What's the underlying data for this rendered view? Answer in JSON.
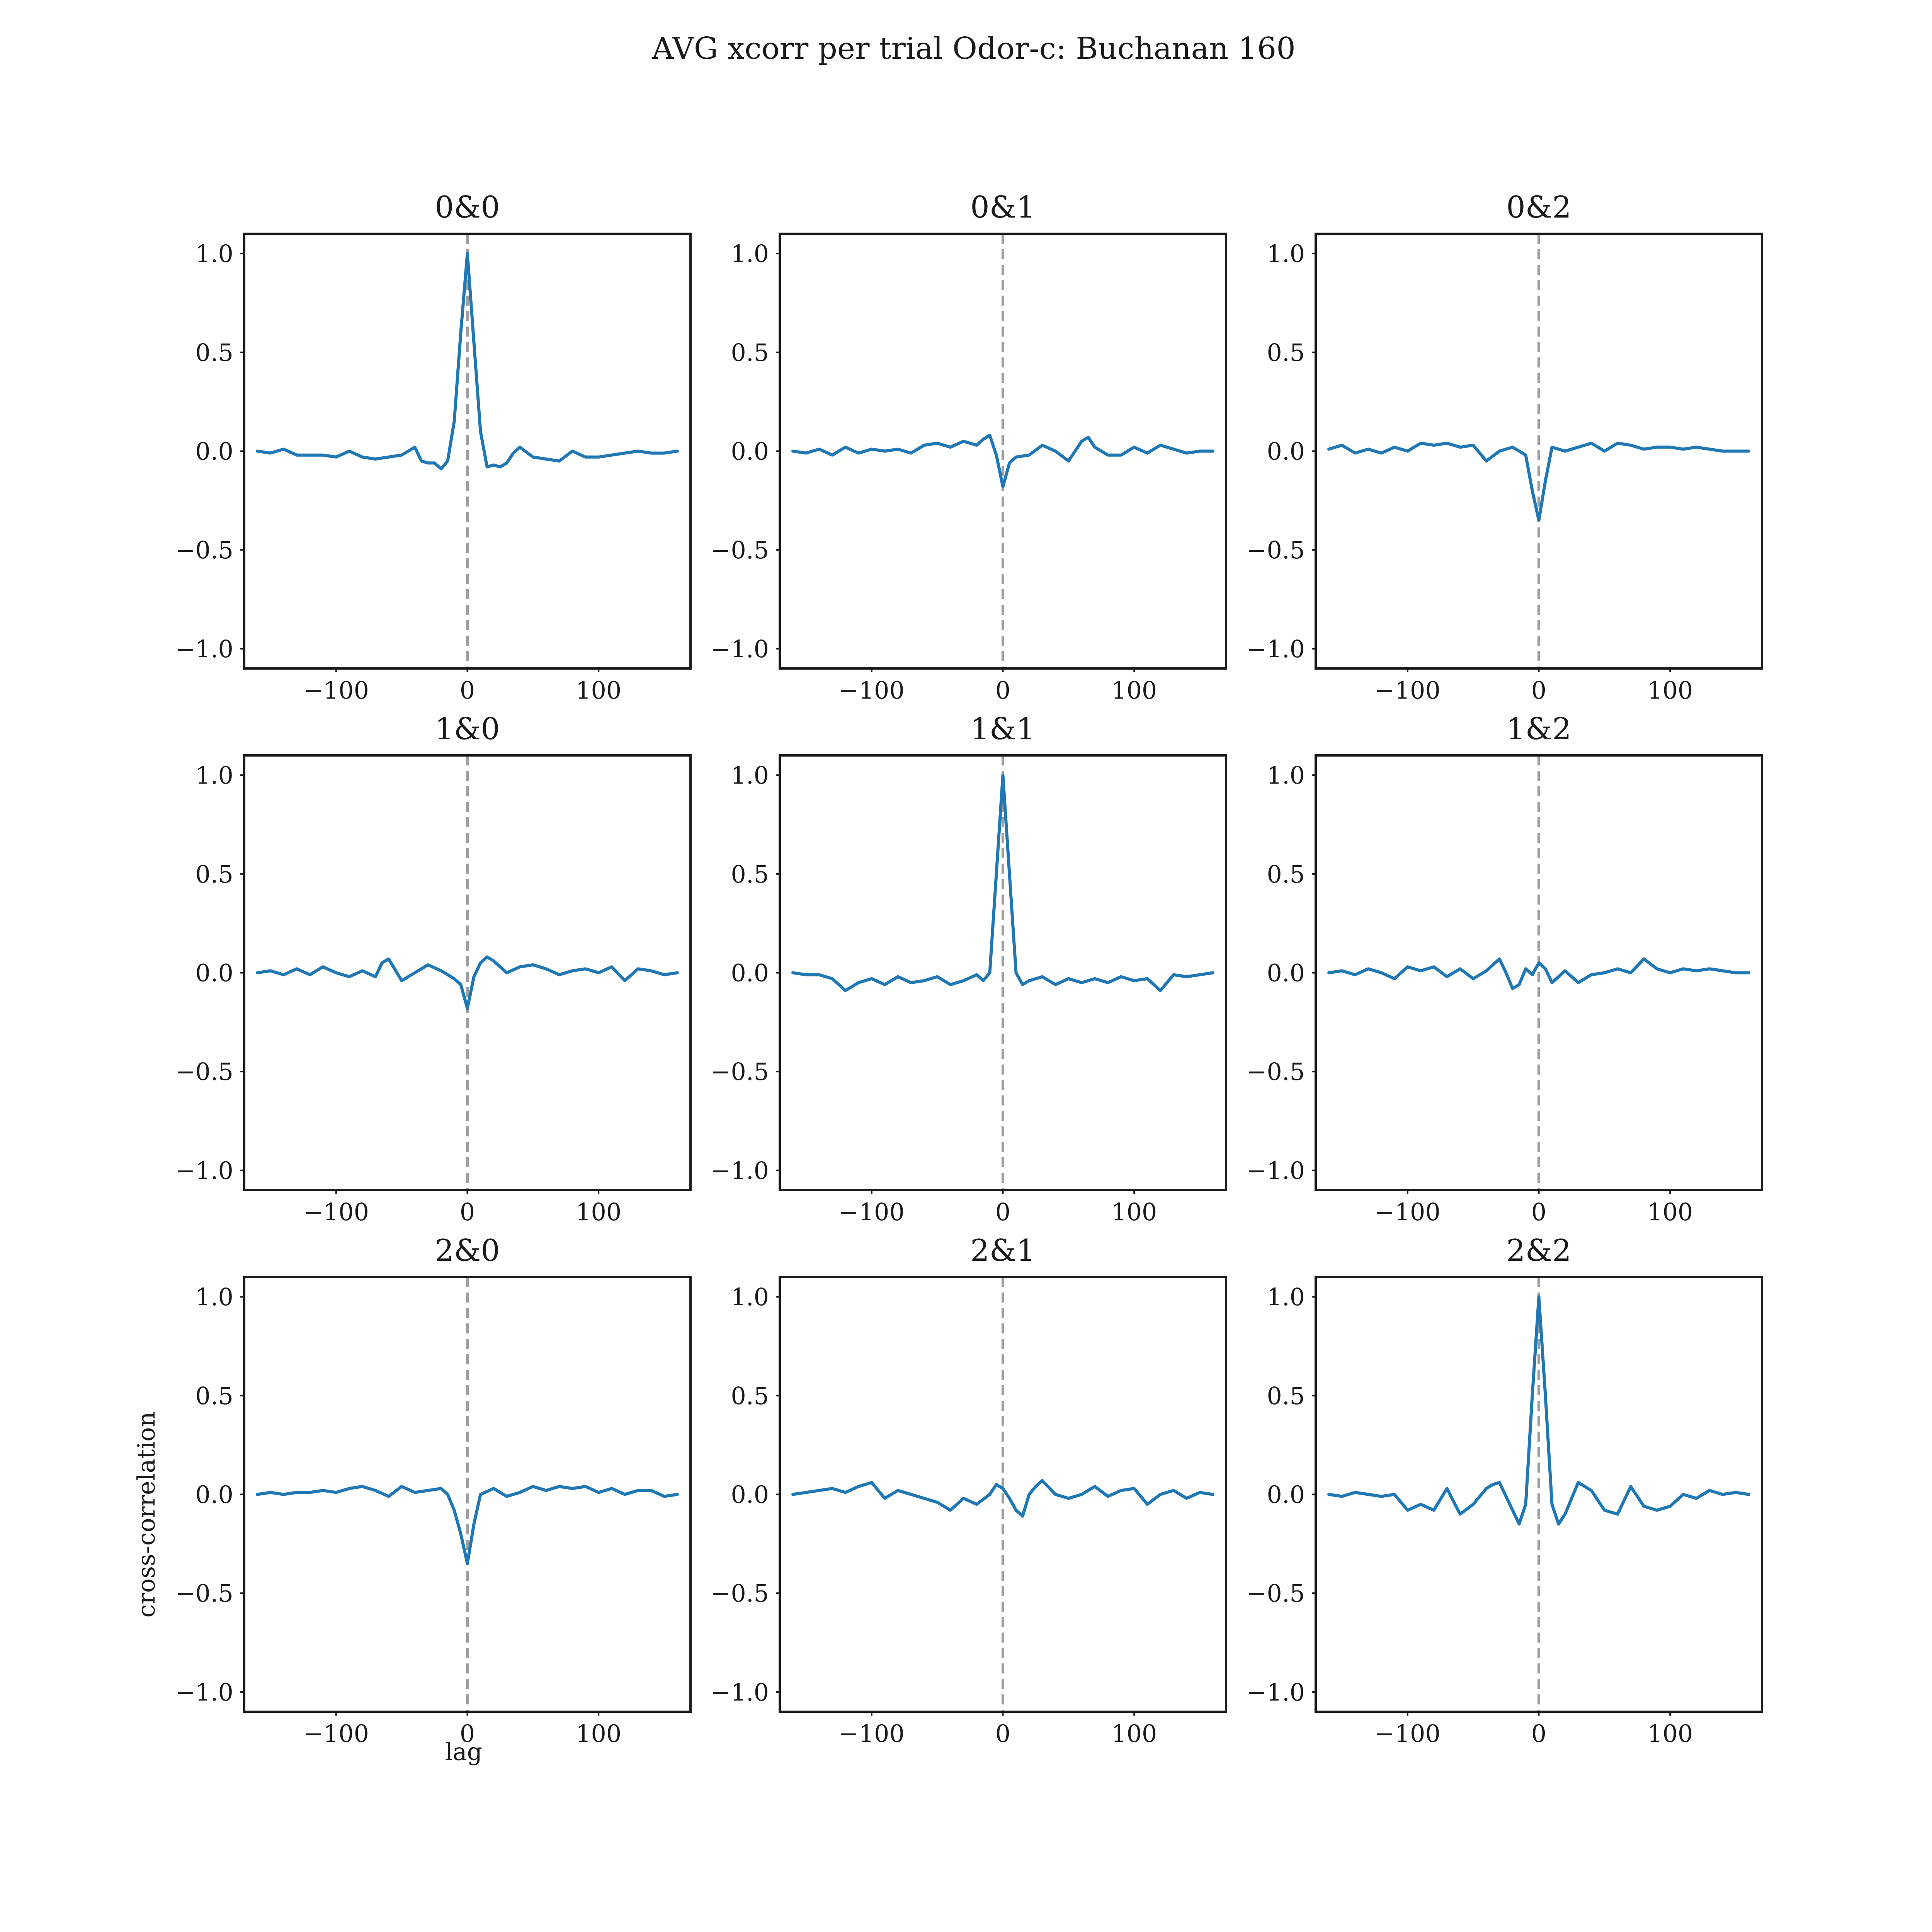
{
  "figure": {
    "title": "AVG xcorr per trial Odor-c: Buchanan 160",
    "xlabel": "lag",
    "ylabel": "cross-correlation"
  },
  "chart_data": [
    {
      "type": "line",
      "title": "0&0",
      "xlim": [
        -170,
        170
      ],
      "ylim": [
        -1.1,
        1.1
      ],
      "xticks": [
        -100,
        0,
        100
      ],
      "xtick_labels": [
        "−100",
        "0",
        "100"
      ],
      "yticks": [
        1.0,
        0.5,
        0.0,
        -0.5,
        -1.0
      ],
      "ytick_labels": [
        "1.0",
        "0.5",
        "0.0",
        "−0.5",
        "−1.0"
      ],
      "vline_x": 0,
      "x": [
        -160,
        -150,
        -140,
        -130,
        -120,
        -110,
        -100,
        -90,
        -80,
        -70,
        -60,
        -50,
        -40,
        -35,
        -30,
        -25,
        -20,
        -15,
        -10,
        -5,
        0,
        5,
        10,
        15,
        20,
        25,
        30,
        35,
        40,
        50,
        60,
        70,
        80,
        90,
        100,
        110,
        120,
        130,
        140,
        150,
        160
      ],
      "y": [
        0,
        -0.01,
        0.01,
        -0.02,
        -0.02,
        -0.02,
        -0.03,
        0.0,
        -0.03,
        -0.04,
        -0.03,
        -0.02,
        0.02,
        -0.05,
        -0.06,
        -0.06,
        -0.09,
        -0.05,
        0.15,
        0.6,
        1.0,
        0.55,
        0.1,
        -0.08,
        -0.07,
        -0.08,
        -0.06,
        -0.01,
        0.02,
        -0.03,
        -0.04,
        -0.05,
        0.0,
        -0.03,
        -0.03,
        -0.02,
        -0.01,
        0.0,
        -0.01,
        -0.01,
        0.0
      ]
    },
    {
      "type": "line",
      "title": "0&1",
      "xlim": [
        -170,
        170
      ],
      "ylim": [
        -1.1,
        1.1
      ],
      "xticks": [
        -100,
        0,
        100
      ],
      "xtick_labels": [
        "−100",
        "0",
        "100"
      ],
      "yticks": [
        1.0,
        0.5,
        0.0,
        -0.5,
        -1.0
      ],
      "ytick_labels": [
        "1.0",
        "0.5",
        "0.0",
        "−0.5",
        "−1.0"
      ],
      "vline_x": 0,
      "x": [
        -160,
        -150,
        -140,
        -130,
        -120,
        -110,
        -100,
        -90,
        -80,
        -70,
        -60,
        -50,
        -40,
        -30,
        -20,
        -15,
        -10,
        -5,
        0,
        5,
        10,
        20,
        30,
        40,
        50,
        60,
        65,
        70,
        80,
        90,
        100,
        110,
        120,
        130,
        140,
        150,
        160
      ],
      "y": [
        0,
        -0.01,
        0.01,
        -0.02,
        0.02,
        -0.01,
        0.01,
        0.0,
        0.01,
        -0.01,
        0.03,
        0.04,
        0.02,
        0.05,
        0.03,
        0.06,
        0.08,
        -0.02,
        -0.18,
        -0.06,
        -0.03,
        -0.02,
        0.03,
        0.0,
        -0.05,
        0.05,
        0.07,
        0.02,
        -0.02,
        -0.02,
        0.02,
        -0.01,
        0.03,
        0.01,
        -0.01,
        0.0,
        0.0
      ]
    },
    {
      "type": "line",
      "title": "0&2",
      "xlim": [
        -170,
        170
      ],
      "ylim": [
        -1.1,
        1.1
      ],
      "xticks": [
        -100,
        0,
        100
      ],
      "xtick_labels": [
        "−100",
        "0",
        "100"
      ],
      "yticks": [
        1.0,
        0.5,
        0.0,
        -0.5,
        -1.0
      ],
      "ytick_labels": [
        "1.0",
        "0.5",
        "0.0",
        "−0.5",
        "−1.0"
      ],
      "vline_x": 0,
      "x": [
        -160,
        -150,
        -140,
        -130,
        -120,
        -110,
        -100,
        -90,
        -80,
        -70,
        -60,
        -50,
        -40,
        -30,
        -20,
        -10,
        -5,
        0,
        5,
        10,
        20,
        30,
        40,
        50,
        60,
        70,
        80,
        90,
        100,
        110,
        120,
        130,
        140,
        150,
        160
      ],
      "y": [
        0.01,
        0.03,
        -0.01,
        0.01,
        -0.01,
        0.02,
        0.0,
        0.04,
        0.03,
        0.04,
        0.02,
        0.03,
        -0.05,
        0.0,
        0.02,
        -0.02,
        -0.2,
        -0.35,
        -0.15,
        0.02,
        0.0,
        0.02,
        0.04,
        0.0,
        0.04,
        0.03,
        0.01,
        0.02,
        0.02,
        0.01,
        0.02,
        0.01,
        0.0,
        0.0,
        0.0
      ]
    },
    {
      "type": "line",
      "title": "1&0",
      "xlim": [
        -170,
        170
      ],
      "ylim": [
        -1.1,
        1.1
      ],
      "xticks": [
        -100,
        0,
        100
      ],
      "xtick_labels": [
        "−100",
        "0",
        "100"
      ],
      "yticks": [
        1.0,
        0.5,
        0.0,
        -0.5,
        -1.0
      ],
      "ytick_labels": [
        "1.0",
        "0.5",
        "0.0",
        "−0.5",
        "−1.0"
      ],
      "vline_x": 0,
      "x": [
        -160,
        -150,
        -140,
        -130,
        -120,
        -110,
        -100,
        -90,
        -80,
        -70,
        -65,
        -60,
        -50,
        -40,
        -30,
        -20,
        -10,
        -5,
        0,
        5,
        10,
        15,
        20,
        30,
        40,
        50,
        60,
        70,
        80,
        90,
        100,
        110,
        120,
        130,
        140,
        150,
        160
      ],
      "y": [
        0,
        0.01,
        -0.01,
        0.02,
        -0.01,
        0.03,
        0.0,
        -0.02,
        0.01,
        -0.02,
        0.05,
        0.07,
        -0.04,
        0.0,
        0.04,
        0.01,
        -0.03,
        -0.06,
        -0.18,
        -0.02,
        0.05,
        0.08,
        0.06,
        0.0,
        0.03,
        0.04,
        0.02,
        -0.01,
        0.01,
        0.02,
        0.0,
        0.03,
        -0.04,
        0.02,
        0.01,
        -0.01,
        0.0
      ]
    },
    {
      "type": "line",
      "title": "1&1",
      "xlim": [
        -170,
        170
      ],
      "ylim": [
        -1.1,
        1.1
      ],
      "xticks": [
        -100,
        0,
        100
      ],
      "xtick_labels": [
        "−100",
        "0",
        "100"
      ],
      "yticks": [
        1.0,
        0.5,
        0.0,
        -0.5,
        -1.0
      ],
      "ytick_labels": [
        "1.0",
        "0.5",
        "0.0",
        "−0.5",
        "−1.0"
      ],
      "vline_x": 0,
      "x": [
        -160,
        -150,
        -140,
        -130,
        -120,
        -110,
        -100,
        -90,
        -80,
        -70,
        -60,
        -50,
        -40,
        -30,
        -20,
        -15,
        -10,
        -5,
        0,
        5,
        10,
        15,
        20,
        30,
        40,
        50,
        60,
        70,
        80,
        90,
        100,
        110,
        120,
        130,
        140,
        150,
        160
      ],
      "y": [
        0,
        -0.01,
        -0.01,
        -0.03,
        -0.09,
        -0.05,
        -0.03,
        -0.06,
        -0.02,
        -0.05,
        -0.04,
        -0.02,
        -0.06,
        -0.04,
        -0.01,
        -0.04,
        0.0,
        0.5,
        1.0,
        0.5,
        0.0,
        -0.06,
        -0.04,
        -0.02,
        -0.06,
        -0.03,
        -0.05,
        -0.03,
        -0.05,
        -0.02,
        -0.04,
        -0.03,
        -0.09,
        -0.01,
        -0.02,
        -0.01,
        0.0
      ]
    },
    {
      "type": "line",
      "title": "1&2",
      "xlim": [
        -170,
        170
      ],
      "ylim": [
        -1.1,
        1.1
      ],
      "xticks": [
        -100,
        0,
        100
      ],
      "xtick_labels": [
        "−100",
        "0",
        "100"
      ],
      "yticks": [
        1.0,
        0.5,
        0.0,
        -0.5,
        -1.0
      ],
      "ytick_labels": [
        "1.0",
        "0.5",
        "0.0",
        "−0.5",
        "−1.0"
      ],
      "vline_x": 0,
      "x": [
        -160,
        -150,
        -140,
        -130,
        -120,
        -110,
        -100,
        -90,
        -80,
        -70,
        -60,
        -50,
        -40,
        -30,
        -25,
        -20,
        -15,
        -10,
        -5,
        0,
        5,
        10,
        20,
        30,
        40,
        50,
        60,
        70,
        80,
        90,
        100,
        110,
        120,
        130,
        140,
        150,
        160
      ],
      "y": [
        0,
        0.01,
        -0.01,
        0.02,
        0.0,
        -0.03,
        0.03,
        0.01,
        0.03,
        -0.02,
        0.02,
        -0.03,
        0.01,
        0.07,
        0.0,
        -0.08,
        -0.06,
        0.02,
        -0.01,
        0.05,
        0.02,
        -0.05,
        0.01,
        -0.05,
        -0.01,
        0.0,
        0.02,
        0.0,
        0.07,
        0.02,
        0.0,
        0.02,
        0.01,
        0.02,
        0.01,
        0.0,
        0.0
      ]
    },
    {
      "type": "line",
      "title": "2&0",
      "xlim": [
        -170,
        170
      ],
      "ylim": [
        -1.1,
        1.1
      ],
      "xticks": [
        -100,
        0,
        100
      ],
      "xtick_labels": [
        "−100",
        "0",
        "100"
      ],
      "yticks": [
        1.0,
        0.5,
        0.0,
        -0.5,
        -1.0
      ],
      "ytick_labels": [
        "1.0",
        "0.5",
        "0.0",
        "−0.5",
        "−1.0"
      ],
      "vline_x": 0,
      "x": [
        -160,
        -150,
        -140,
        -130,
        -120,
        -110,
        -100,
        -90,
        -80,
        -70,
        -60,
        -50,
        -40,
        -30,
        -20,
        -15,
        -10,
        -5,
        0,
        5,
        10,
        20,
        30,
        40,
        50,
        60,
        70,
        80,
        90,
        100,
        110,
        120,
        130,
        140,
        150,
        160
      ],
      "y": [
        0,
        0.01,
        0.0,
        0.01,
        0.01,
        0.02,
        0.01,
        0.03,
        0.04,
        0.02,
        -0.01,
        0.04,
        0.01,
        0.02,
        0.03,
        0.0,
        -0.08,
        -0.2,
        -0.35,
        -0.15,
        0.0,
        0.03,
        -0.01,
        0.01,
        0.04,
        0.02,
        0.04,
        0.03,
        0.04,
        0.01,
        0.03,
        0.0,
        0.02,
        0.02,
        -0.01,
        0.0
      ]
    },
    {
      "type": "line",
      "title": "2&1",
      "xlim": [
        -170,
        170
      ],
      "ylim": [
        -1.1,
        1.1
      ],
      "xticks": [
        -100,
        0,
        100
      ],
      "xtick_labels": [
        "−100",
        "0",
        "100"
      ],
      "yticks": [
        1.0,
        0.5,
        0.0,
        -0.5,
        -1.0
      ],
      "ytick_labels": [
        "1.0",
        "0.5",
        "0.0",
        "−0.5",
        "−1.0"
      ],
      "vline_x": 0,
      "x": [
        -160,
        -150,
        -140,
        -130,
        -120,
        -110,
        -100,
        -90,
        -80,
        -70,
        -60,
        -50,
        -40,
        -30,
        -20,
        -10,
        -5,
        0,
        5,
        10,
        15,
        20,
        25,
        30,
        40,
        50,
        60,
        70,
        80,
        90,
        100,
        110,
        120,
        130,
        140,
        150,
        160
      ],
      "y": [
        0,
        0.01,
        0.02,
        0.03,
        0.01,
        0.04,
        0.06,
        -0.02,
        0.02,
        0.0,
        -0.02,
        -0.04,
        -0.08,
        -0.02,
        -0.05,
        0.0,
        0.05,
        0.03,
        -0.02,
        -0.08,
        -0.11,
        0.0,
        0.04,
        0.07,
        0.0,
        -0.02,
        0.0,
        0.04,
        -0.01,
        0.02,
        0.03,
        -0.05,
        0.0,
        0.02,
        -0.02,
        0.01,
        0.0
      ]
    },
    {
      "type": "line",
      "title": "2&2",
      "xlim": [
        -170,
        170
      ],
      "ylim": [
        -1.1,
        1.1
      ],
      "xticks": [
        -100,
        0,
        100
      ],
      "xtick_labels": [
        "−100",
        "0",
        "100"
      ],
      "yticks": [
        1.0,
        0.5,
        0.0,
        -0.5,
        -1.0
      ],
      "ytick_labels": [
        "1.0",
        "0.5",
        "0.0",
        "−0.5",
        "−1.0"
      ],
      "vline_x": 0,
      "x": [
        -160,
        -150,
        -140,
        -130,
        -120,
        -110,
        -100,
        -90,
        -80,
        -70,
        -60,
        -50,
        -40,
        -35,
        -30,
        -20,
        -15,
        -10,
        -5,
        0,
        5,
        10,
        15,
        20,
        30,
        40,
        50,
        60,
        70,
        80,
        90,
        100,
        110,
        120,
        130,
        140,
        150,
        160
      ],
      "y": [
        0,
        -0.01,
        0.01,
        0.0,
        -0.01,
        0.0,
        -0.08,
        -0.05,
        -0.08,
        0.03,
        -0.1,
        -0.05,
        0.03,
        0.05,
        0.06,
        -0.08,
        -0.15,
        -0.05,
        0.5,
        1.0,
        0.5,
        -0.05,
        -0.15,
        -0.1,
        0.06,
        0.02,
        -0.08,
        -0.1,
        0.04,
        -0.06,
        -0.08,
        -0.06,
        0.0,
        -0.02,
        0.02,
        0.0,
        0.01,
        0.0
      ]
    }
  ]
}
